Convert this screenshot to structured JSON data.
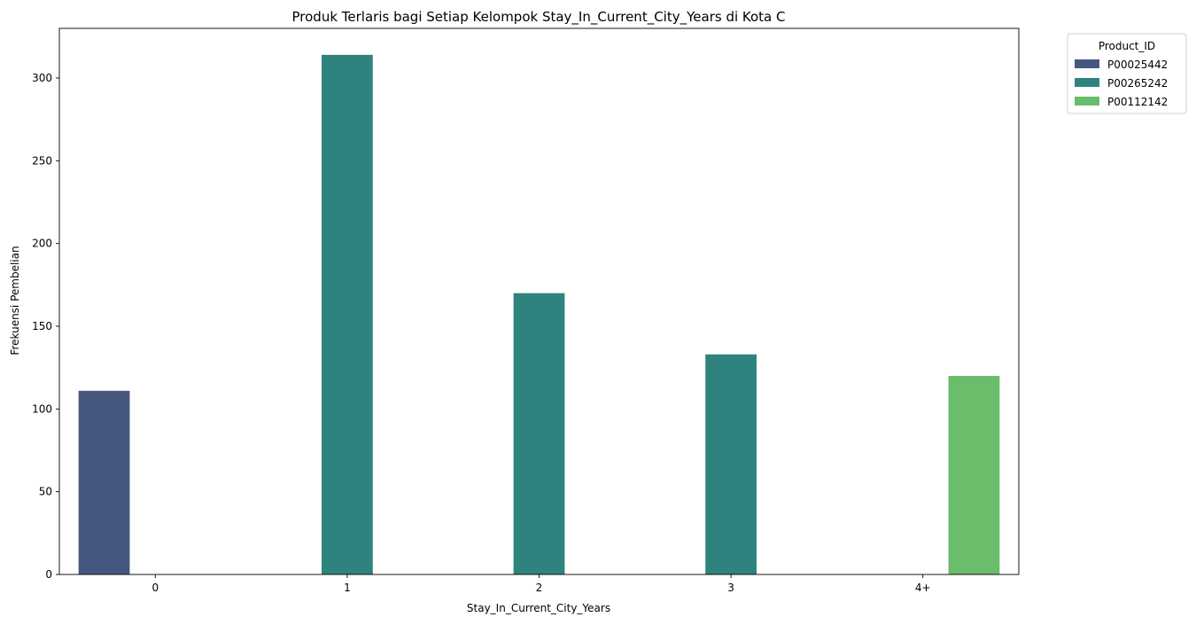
{
  "chart_data": {
    "type": "bar",
    "title": "Produk Terlaris bagi Setiap Kelompok Stay_In_Current_City_Years di Kota C",
    "xlabel": "Stay_In_Current_City_Years",
    "ylabel": "Frekuensi Pembelian",
    "categories": [
      "0",
      "1",
      "2",
      "3",
      "4+"
    ],
    "ylim": [
      0,
      330
    ],
    "yticks": [
      0,
      50,
      100,
      150,
      200,
      250,
      300
    ],
    "legend": {
      "title": "Product_ID",
      "placement": "outside-top-right"
    },
    "grid": false,
    "series": [
      {
        "name": "P00025442",
        "color": "#46577f",
        "values": [
          111,
          null,
          null,
          null,
          null
        ]
      },
      {
        "name": "P00265242",
        "color": "#2e837e",
        "values": [
          null,
          314,
          170,
          133,
          null
        ]
      },
      {
        "name": "P00112142",
        "color": "#6abd6b",
        "values": [
          null,
          null,
          null,
          null,
          120
        ]
      }
    ]
  }
}
